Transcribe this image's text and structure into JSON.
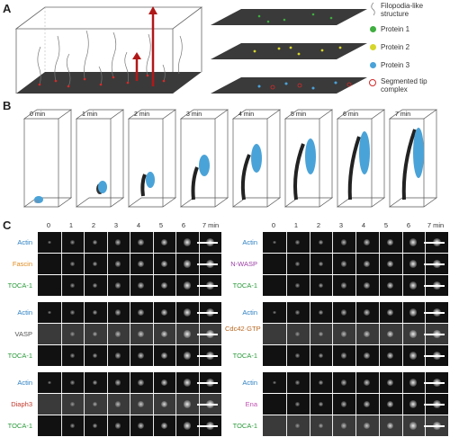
{
  "figure": {
    "panel_a": {
      "letter": "A",
      "legend": [
        {
          "id": "filopod",
          "text": "Filopodia-like structure",
          "color": "#888888"
        },
        {
          "id": "p1",
          "text": "Protein 1",
          "color": "#3fae3f"
        },
        {
          "id": "p2",
          "text": "Protein 2",
          "color": "#d6d62a"
        },
        {
          "id": "p3",
          "text": "Protein 3",
          "color": "#4aa3d8"
        },
        {
          "id": "seg",
          "text": "Segmented tip complex",
          "color": "#d42a2a"
        }
      ]
    },
    "panel_b": {
      "letter": "B",
      "times": [
        "0 min",
        "1 min",
        "2 min",
        "3 min",
        "4 min",
        "5 min",
        "6 min",
        "7 min"
      ]
    },
    "panel_c": {
      "letter": "C",
      "ticks": [
        "0",
        "1",
        "2",
        "3",
        "4",
        "5",
        "6",
        "7 min"
      ],
      "left_groups": [
        {
          "labels": [
            {
              "text": "Actin",
              "color": "#2a7fc1"
            },
            {
              "text": "Fascin",
              "color": "#e08a1e"
            },
            {
              "text": "TOCA-1",
              "color": "#2a9a3a"
            }
          ]
        },
        {
          "labels": [
            {
              "text": "Actin",
              "color": "#2a7fc1"
            },
            {
              "text": "VASP",
              "color": "#555555"
            },
            {
              "text": "TOCA-1",
              "color": "#2a9a3a"
            }
          ]
        },
        {
          "labels": [
            {
              "text": "Actin",
              "color": "#2a7fc1"
            },
            {
              "text": "Diaph3",
              "color": "#c0392b"
            },
            {
              "text": "TOCA-1",
              "color": "#2a9a3a"
            }
          ]
        }
      ],
      "right_groups": [
        {
          "labels": [
            {
              "text": "Actin",
              "color": "#2a7fc1"
            },
            {
              "text": "N-WASP",
              "color": "#9b3fa6"
            },
            {
              "text": "TOCA-1",
              "color": "#2a9a3a"
            }
          ]
        },
        {
          "labels": [
            {
              "text": "Actin",
              "color": "#2a7fc1"
            },
            {
              "text": "Cdc42·GTP",
              "color": "#b8661e"
            },
            {
              "text": "TOCA-1",
              "color": "#2a9a3a"
            }
          ]
        },
        {
          "labels": [
            {
              "text": "Actin",
              "color": "#2a7fc1"
            },
            {
              "text": "Ena",
              "color": "#c04fb0"
            },
            {
              "text": "TOCA-1",
              "color": "#2a9a3a"
            }
          ]
        }
      ]
    }
  }
}
